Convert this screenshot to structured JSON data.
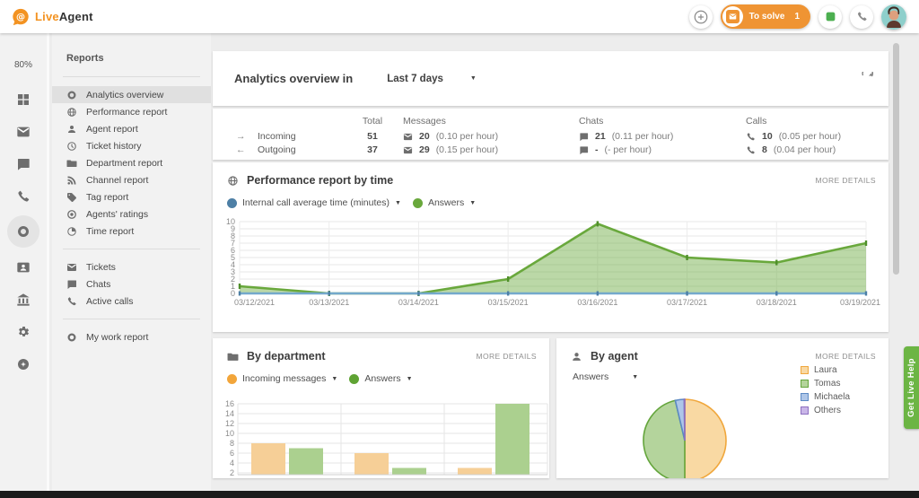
{
  "topbar": {
    "logo_live": "Live",
    "logo_agent": "Agent",
    "to_solve": {
      "label": "To solve",
      "count": "1"
    }
  },
  "rail": {
    "usage": "80%",
    "items": [
      {
        "icon": "grid",
        "name": "dashboard"
      },
      {
        "icon": "mail",
        "name": "tickets"
      },
      {
        "icon": "chat",
        "name": "chats"
      },
      {
        "icon": "phone",
        "name": "calls"
      },
      {
        "icon": "donut",
        "name": "reports",
        "active": true
      },
      {
        "icon": "contact",
        "name": "customers"
      },
      {
        "icon": "bank",
        "name": "academy"
      },
      {
        "icon": "gear",
        "name": "settings"
      },
      {
        "icon": "star",
        "name": "addons"
      }
    ]
  },
  "reports": {
    "title": "Reports",
    "groups": [
      [
        {
          "icon": "donut",
          "label": "Analytics overview",
          "selected": true
        },
        {
          "icon": "globe",
          "label": "Performance report"
        },
        {
          "icon": "person",
          "label": "Agent report"
        },
        {
          "icon": "history",
          "label": "Ticket history"
        },
        {
          "icon": "folder",
          "label": "Department report"
        },
        {
          "icon": "rss",
          "label": "Channel report"
        },
        {
          "icon": "tag",
          "label": "Tag report"
        },
        {
          "icon": "target",
          "label": "Agents' ratings"
        },
        {
          "icon": "pietime",
          "label": "Time report"
        }
      ],
      [
        {
          "icon": "mail",
          "label": "Tickets"
        },
        {
          "icon": "chat",
          "label": "Chats"
        },
        {
          "icon": "phone",
          "label": "Active calls"
        }
      ],
      [
        {
          "icon": "donut",
          "label": "My work report"
        }
      ]
    ]
  },
  "overview": {
    "title": "Analytics overview in",
    "range": "Last 7 days"
  },
  "stats": {
    "headers": {
      "total": "Total",
      "messages": "Messages",
      "chats": "Chats",
      "calls": "Calls"
    },
    "rows": [
      {
        "arrow": "→",
        "label": "Incoming",
        "total": "51",
        "messages": {
          "value": "20",
          "rate": "(0.10 per hour)"
        },
        "chats": {
          "value": "21",
          "rate": "(0.11 per hour)"
        },
        "calls": {
          "value": "10",
          "rate": "(0.05 per hour)"
        }
      },
      {
        "arrow": "←",
        "label": "Outgoing",
        "total": "37",
        "messages": {
          "value": "29",
          "rate": "(0.15 per hour)"
        },
        "chats": {
          "value": "-",
          "rate": "(- per hour)"
        },
        "calls": {
          "value": "8",
          "rate": "(0.04 per hour)"
        }
      }
    ]
  },
  "performance": {
    "title": "Performance report by time",
    "more": "MORE DETAILS"
  },
  "department": {
    "title": "By department",
    "more": "MORE DETAILS"
  },
  "agent": {
    "title": "By agent",
    "more": "MORE DETAILS",
    "metric": "Answers"
  },
  "help_tab": {
    "label": "Get Live Help",
    "color": "#6cb544"
  },
  "colors": {
    "brand_orange": "#f39322",
    "chart_green": "#69a83c",
    "chart_blue": "#5e93b8",
    "bar_orange": "#f6cf97",
    "bar_green": "#abd08f",
    "legend_orange": "#f2a53a"
  },
  "chart_data": [
    {
      "type": "area",
      "title": "Performance report by time",
      "x": [
        "03/12/2021",
        "03/13/2021",
        "03/14/2021",
        "03/15/2021",
        "03/16/2021",
        "03/17/2021",
        "03/18/2021",
        "03/19/2021"
      ],
      "series": [
        {
          "name": "Internal call average time (minutes)",
          "color": "#4d7fa5",
          "values": [
            0,
            0,
            0,
            0,
            0,
            0,
            0,
            0
          ]
        },
        {
          "name": "Answers",
          "color": "#69a83c",
          "values": [
            1,
            0,
            0,
            2,
            9.7,
            5,
            4.3,
            7
          ]
        }
      ],
      "ylim": [
        0,
        10
      ],
      "yticks": [
        0,
        1,
        2,
        3,
        4,
        5,
        6,
        7,
        8,
        9,
        10
      ],
      "grid": true,
      "legend_position": "top-left"
    },
    {
      "type": "bar",
      "title": "By department",
      "categories": [
        "",
        "",
        ""
      ],
      "x_labels_visible": false,
      "series": [
        {
          "name": "Incoming messages",
          "color": "#f6cf97",
          "legend_color": "#f2a53a",
          "values": [
            8,
            6,
            3
          ]
        },
        {
          "name": "Answers",
          "color": "#abd08f",
          "legend_color": "#5fa333",
          "values": [
            7,
            3,
            16
          ]
        }
      ],
      "ylim_visible": [
        2,
        16
      ],
      "yticks": [
        2,
        4,
        6,
        8,
        10,
        12,
        14,
        16
      ],
      "grid": true
    },
    {
      "type": "pie",
      "title": "By agent",
      "metric": "Answers",
      "slices": [
        {
          "name": "Laura",
          "value": 50,
          "fill": "#f9d9a3",
          "stroke": "#f0a73c"
        },
        {
          "name": "Tomas",
          "value": 46.3,
          "fill": "#b4d49c",
          "stroke": "#64a53c"
        },
        {
          "name": "Michaela",
          "value": 3.5,
          "fill": "#aec6e8",
          "stroke": "#5c89c4"
        },
        {
          "name": "Others",
          "value": 0.2,
          "fill": "#c9b6e8",
          "stroke": "#8d6fc0"
        }
      ],
      "legend_position": "right"
    }
  ]
}
